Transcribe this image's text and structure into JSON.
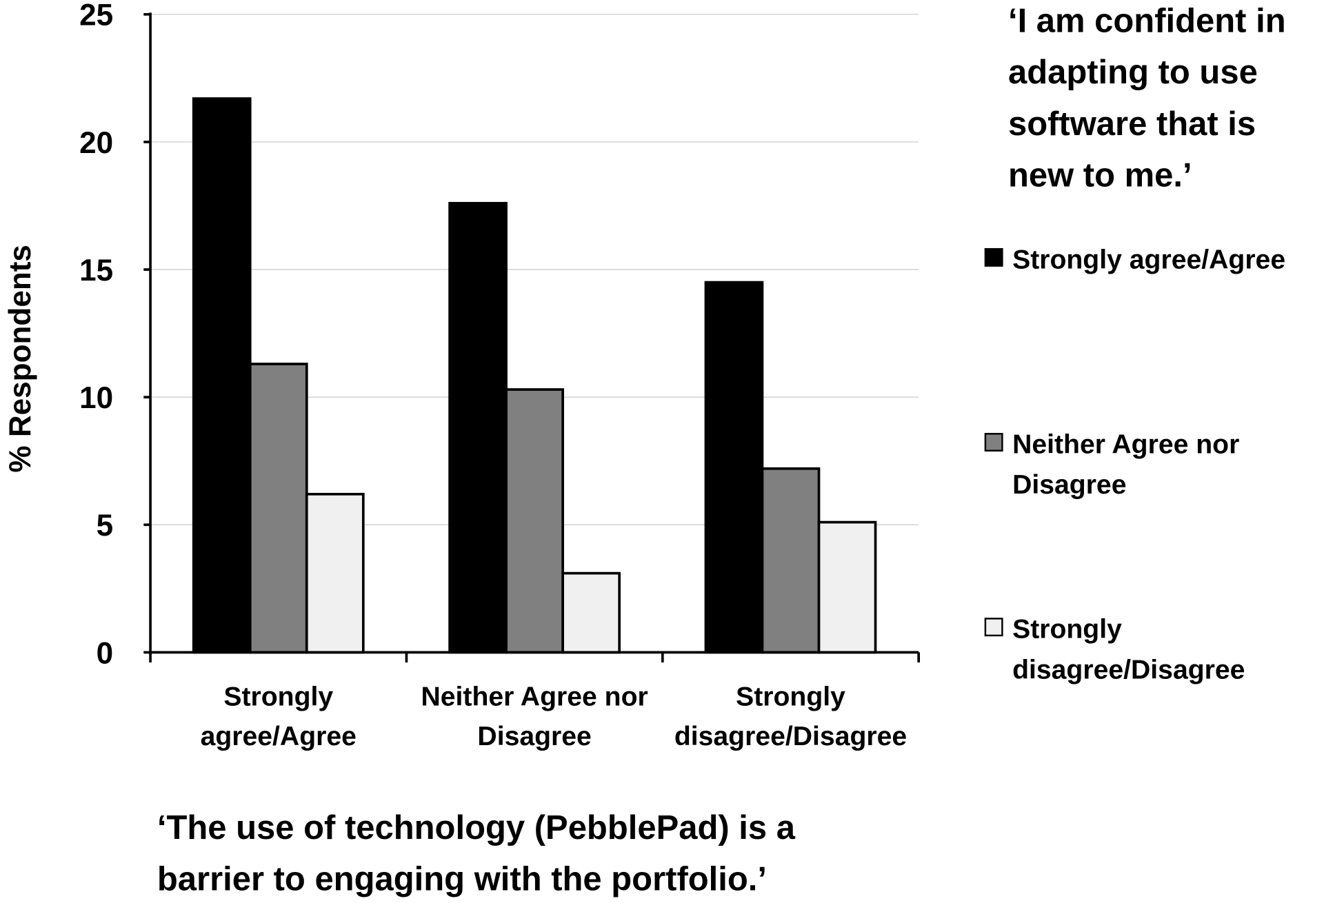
{
  "chart_data": {
    "type": "bar",
    "title": "‘I am confident in adapting to use software that is new to me.’",
    "title_lines": [
      "‘I am confident in",
      "adapting to use",
      "software that is",
      "new to me.’"
    ],
    "xlabel": "‘The use of technology (PebblePad) is a barrier to engaging with the portfolio.’",
    "xlabel_lines": [
      "‘The use of technology (PebblePad) is a",
      "barrier to engaging with the portfolio.’"
    ],
    "ylabel": "% Respondents",
    "ylim": [
      0,
      25
    ],
    "yticks": [
      0,
      5,
      10,
      15,
      20,
      25
    ],
    "grid": true,
    "legend_position": "right",
    "categories": [
      "Strongly agree/Agree",
      "Neither Agree nor Disagree",
      "Strongly disagree/Disagree"
    ],
    "category_lines": [
      [
        "Strongly",
        "agree/Agree"
      ],
      [
        "Neither Agree nor",
        "Disagree"
      ],
      [
        "Strongly",
        "disagree/Disagree"
      ]
    ],
    "series": [
      {
        "name": "Strongly agree/Agree",
        "name_lines": [
          "Strongly agree/Agree"
        ],
        "color": "#000000",
        "values": [
          21.7,
          17.6,
          14.5
        ]
      },
      {
        "name": "Neither Agree nor Disagree",
        "name_lines": [
          "Neither Agree nor",
          "Disagree"
        ],
        "color": "#808080",
        "values": [
          11.3,
          10.3,
          7.2
        ]
      },
      {
        "name": "Strongly disagree/Disagree",
        "name_lines": [
          "Strongly",
          "disagree/Disagree"
        ],
        "color": "#f0f0f0",
        "values": [
          6.2,
          3.1,
          5.1
        ]
      }
    ]
  }
}
